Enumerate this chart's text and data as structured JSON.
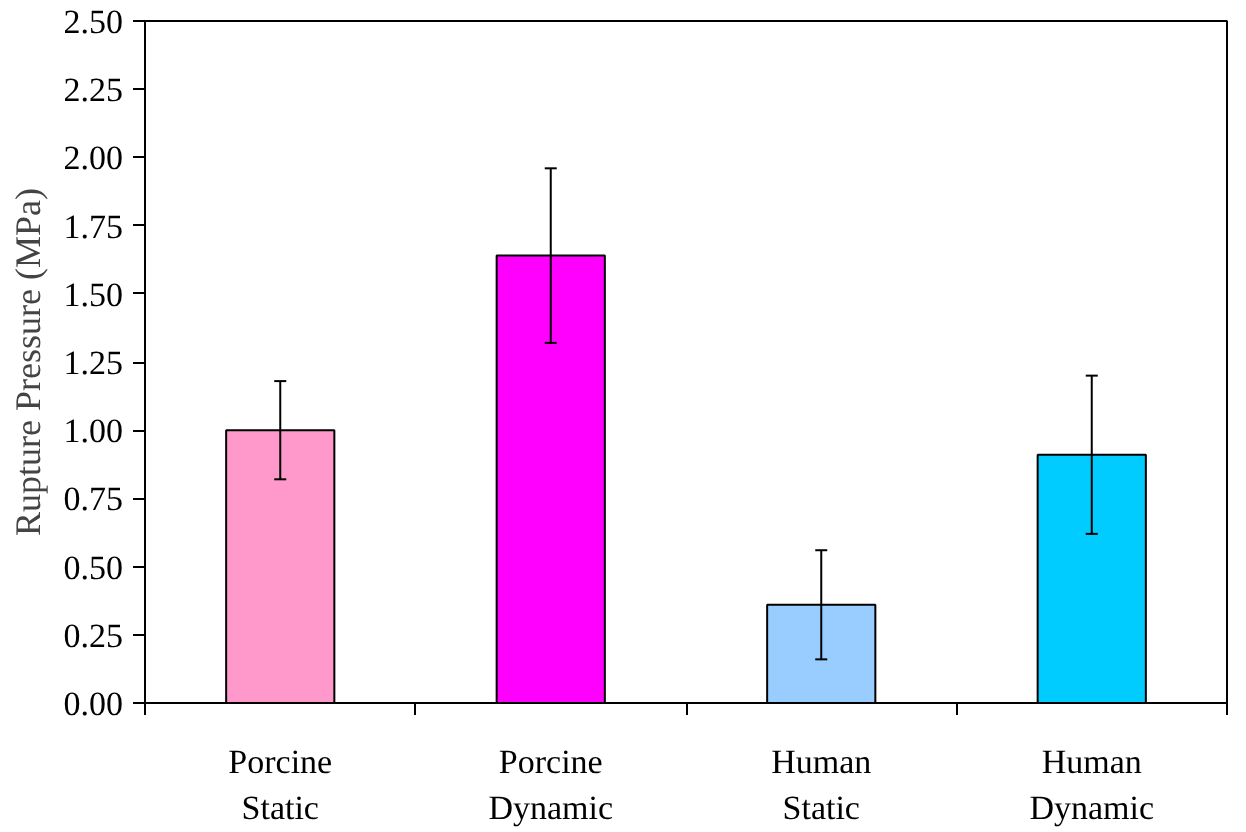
{
  "chart_data": {
    "type": "bar",
    "ylabel": "Rupture Pressure (MPa)",
    "categories": [
      "Porcine\nStatic",
      "Porcine\nDynamic",
      "Human\nStatic",
      "Human\nDynamic"
    ],
    "values": [
      1.0,
      1.64,
      0.36,
      0.91
    ],
    "colors": [
      "#ff99cc",
      "#ff00ff",
      "#99ccff",
      "#00ccff"
    ],
    "errors": [
      [
        0.82,
        1.18
      ],
      [
        1.32,
        1.96
      ],
      [
        0.16,
        0.56
      ],
      [
        0.62,
        1.2
      ]
    ],
    "ylim": [
      0,
      2.5
    ],
    "yticks": [
      {
        "value": 0,
        "label": "0.00"
      },
      {
        "value": 0.25,
        "label": "0.25"
      },
      {
        "value": 0.5,
        "label": "0.50"
      },
      {
        "value": 0.75,
        "label": "0.75"
      },
      {
        "value": 1,
        "label": "1.00"
      },
      {
        "value": 1.25,
        "label": "1.25"
      },
      {
        "value": 1.5,
        "label": "1.50"
      },
      {
        "value": 1.75,
        "label": "1.75"
      },
      {
        "value": 2,
        "label": "2.00"
      },
      {
        "value": 2.25,
        "label": "2.25"
      },
      {
        "value": 2.5,
        "label": "2.50"
      }
    ],
    "grid": false
  }
}
